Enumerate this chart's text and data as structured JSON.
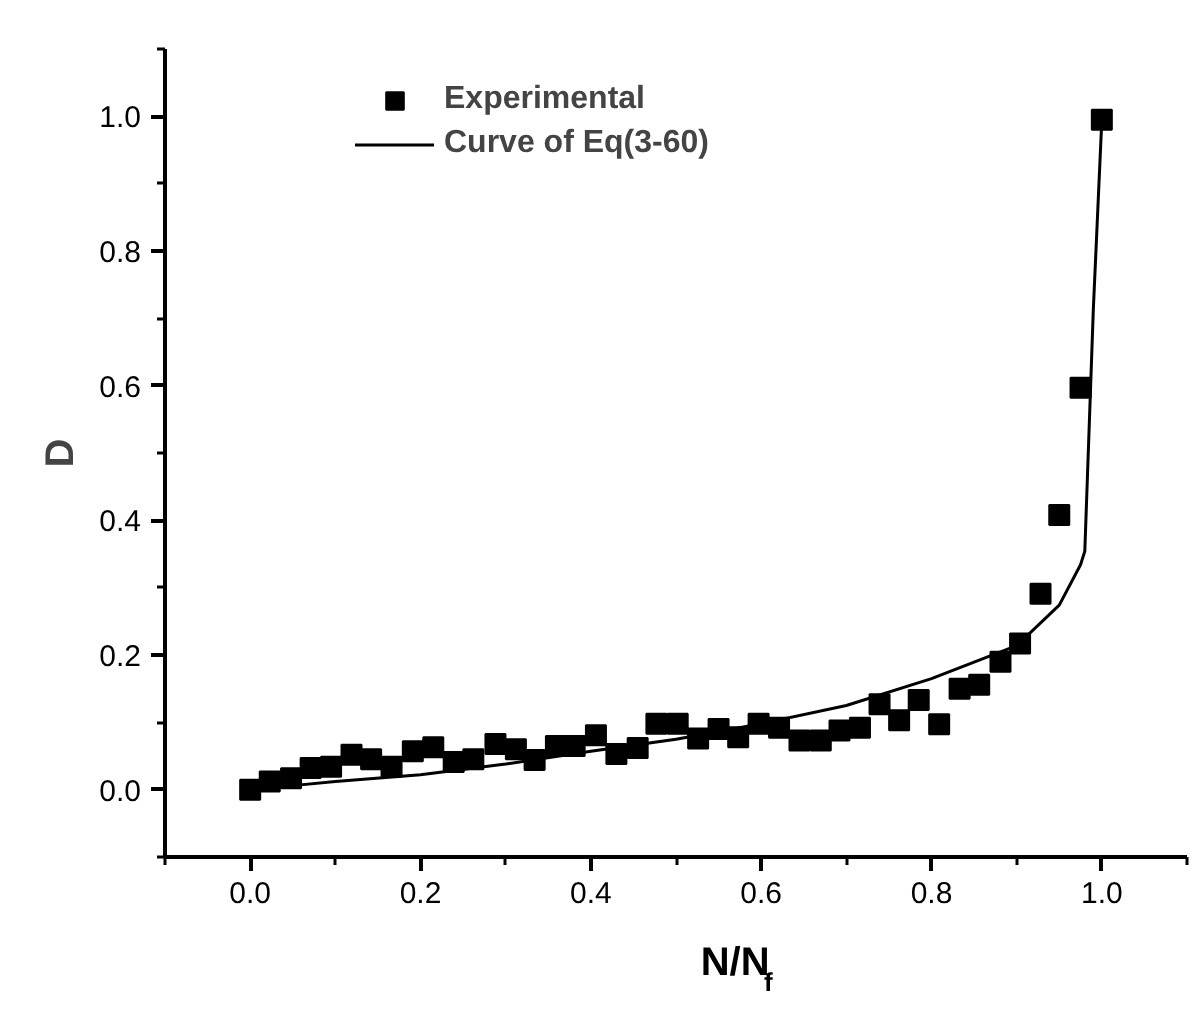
{
  "chart_data": {
    "type": "scatter",
    "xlabel": "N/N$_{f}$",
    "ylabel": "D",
    "xlim": [
      -0.1,
      1.1
    ],
    "ylim": [
      -0.1,
      1.1
    ],
    "xticks": [
      {
        "value": 0,
        "label": "0.0"
      },
      {
        "value": 0.2,
        "label": "0.2"
      },
      {
        "value": 0.4,
        "label": "0.4"
      },
      {
        "value": 0.6,
        "label": "0.6"
      },
      {
        "value": 0.8,
        "label": "0.8"
      },
      {
        "value": 1,
        "label": "1.0"
      }
    ],
    "yticks": [
      {
        "value": 0,
        "label": "0.0"
      },
      {
        "value": 0.2,
        "label": "0.2"
      },
      {
        "value": 0.4,
        "label": "0.4"
      },
      {
        "value": 0.6,
        "label": "0.6"
      },
      {
        "value": 0.8,
        "label": "0.8"
      },
      {
        "value": 1,
        "label": "1.0"
      }
    ],
    "legend": "top left",
    "grid": false,
    "series": [
      {
        "name": "Experimental",
        "marker": "square",
        "color": "#000000",
        "x": [
          0.0,
          0.023,
          0.048,
          0.071,
          0.095,
          0.119,
          0.142,
          0.166,
          0.191,
          0.215,
          0.239,
          0.262,
          0.288,
          0.312,
          0.334,
          0.359,
          0.381,
          0.406,
          0.43,
          0.455,
          0.477,
          0.502,
          0.526,
          0.55,
          0.573,
          0.597,
          0.621,
          0.645,
          0.67,
          0.692,
          0.716,
          0.739,
          0.762,
          0.785,
          0.809,
          0.833,
          0.856,
          0.881,
          0.904,
          0.928,
          0.95,
          0.975,
          1.0
        ],
        "values": [
          0.0,
          0.012,
          0.017,
          0.032,
          0.034,
          0.052,
          0.045,
          0.034,
          0.057,
          0.063,
          0.041,
          0.045,
          0.068,
          0.06,
          0.044,
          0.065,
          0.065,
          0.081,
          0.053,
          0.062,
          0.098,
          0.098,
          0.076,
          0.09,
          0.078,
          0.098,
          0.092,
          0.073,
          0.073,
          0.088,
          0.092,
          0.127,
          0.103,
          0.133,
          0.097,
          0.15,
          0.156,
          0.19,
          0.217,
          0.291,
          0.408,
          0.597,
          0.995
        ]
      },
      {
        "name": "Curve of Eq(3-60)",
        "type": "line",
        "line_style": "solid",
        "color": "#000000",
        "x": [
          0.0,
          0.05,
          0.1,
          0.2,
          0.3,
          0.4,
          0.5,
          0.6,
          0.7,
          0.8,
          0.9,
          0.95,
          0.975,
          0.98,
          0.99,
          1.0
        ],
        "values": [
          0.0,
          0.006,
          0.012,
          0.022,
          0.038,
          0.057,
          0.075,
          0.098,
          0.125,
          0.165,
          0.214,
          0.274,
          0.334,
          0.354,
          0.713,
          0.995
        ]
      }
    ]
  }
}
